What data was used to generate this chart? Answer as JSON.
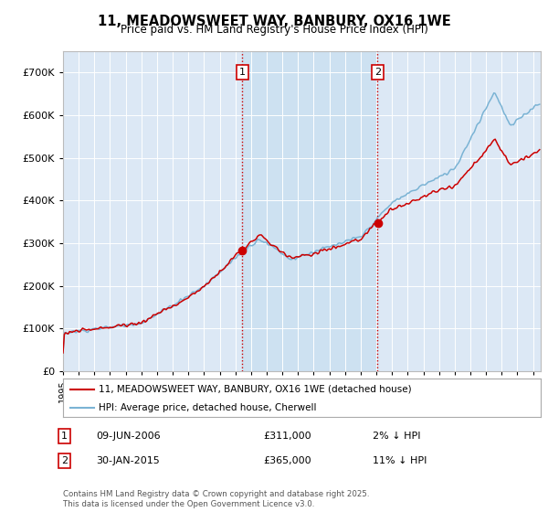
{
  "title": "11, MEADOWSWEET WAY, BANBURY, OX16 1WE",
  "subtitle": "Price paid vs. HM Land Registry's House Price Index (HPI)",
  "ylim": [
    0,
    750000
  ],
  "yticks": [
    0,
    100000,
    200000,
    300000,
    400000,
    500000,
    600000,
    700000
  ],
  "hpi_color": "#7ab3d4",
  "price_color": "#cc0000",
  "sale1_date_x": 2006.44,
  "sale1_price": 311000,
  "sale2_date_x": 2015.08,
  "sale2_price": 365000,
  "vline_color": "#cc0000",
  "legend_line1": "11, MEADOWSWEET WAY, BANBURY, OX16 1WE (detached house)",
  "legend_line2": "HPI: Average price, detached house, Cherwell",
  "footnote": "Contains HM Land Registry data © Crown copyright and database right 2025.\nThis data is licensed under the Open Government Licence v3.0.",
  "xmin": 1995,
  "xmax": 2025.5,
  "background_color": "#dce8f5",
  "shade_color": "#c8dff0"
}
